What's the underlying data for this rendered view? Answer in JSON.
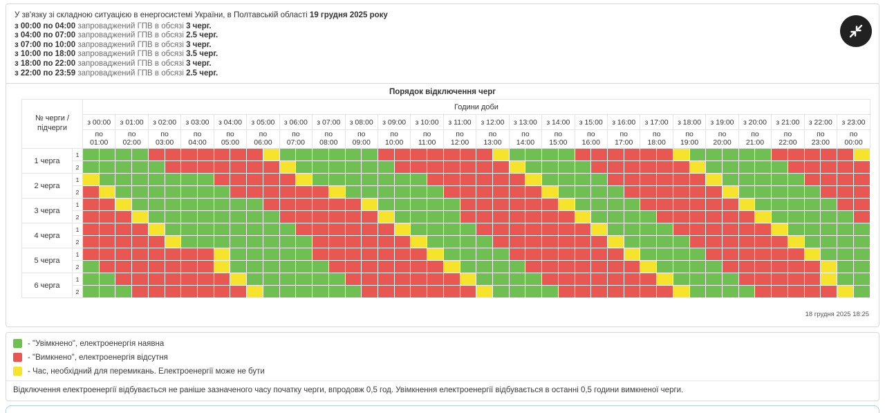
{
  "colors": {
    "on": "#6fbf52",
    "off": "#e95752",
    "switching": "#f6e32b"
  },
  "header": {
    "intro": {
      "text": "У зв'язку зі складною ситуацією в енергосистемі України, в Полтавській області",
      "bold": "19 грудня 2025 року"
    },
    "lines": [
      {
        "range": "з 00:00 по 04:00",
        "mid": "запроваджений ГПВ в обсязі",
        "amount": "3 черг."
      },
      {
        "range": "з 04:00 по 07:00",
        "mid": "запроваджений ГПВ в обсязі",
        "amount": "2.5 черг."
      },
      {
        "range": "з 07:00 по 10:00",
        "mid": "запроваджений ГПВ в обсязі",
        "amount": "3 черг."
      },
      {
        "range": "з 10:00 по 18:00",
        "mid": "запроваджений ГПВ в обсязі",
        "amount": "3.5 черг."
      },
      {
        "range": "з 18:00 по 22:00",
        "mid": "запроваджений ГПВ в обсязі",
        "amount": "3 черг."
      },
      {
        "range": "з 22:00 по 23:59",
        "mid": "запроваджений ГПВ в обсязі",
        "amount": "2.5 черг."
      }
    ]
  },
  "schedule": {
    "title": "Порядок відключення черг",
    "corner_label": "№ черги / підчерги",
    "hours_label": "Години доби",
    "timestamp": "18 грудня 2025 18:25",
    "columns": [
      {
        "from": "з 00:00",
        "po": "по",
        "to": "01:00"
      },
      {
        "from": "з 01:00",
        "po": "по",
        "to": "02:00"
      },
      {
        "from": "з 02:00",
        "po": "по",
        "to": "03:00"
      },
      {
        "from": "з 03:00",
        "po": "по",
        "to": "04:00"
      },
      {
        "from": "з 04:00",
        "po": "по",
        "to": "05:00"
      },
      {
        "from": "з 05:00",
        "po": "по",
        "to": "06:00"
      },
      {
        "from": "з 06:00",
        "po": "по",
        "to": "07:00"
      },
      {
        "from": "з 07:00",
        "po": "по",
        "to": "08:00"
      },
      {
        "from": "з 08:00",
        "po": "по",
        "to": "09:00"
      },
      {
        "from": "з 09:00",
        "po": "по",
        "to": "10:00"
      },
      {
        "from": "з 10:00",
        "po": "по",
        "to": "11:00"
      },
      {
        "from": "з 11:00",
        "po": "по",
        "to": "12:00"
      },
      {
        "from": "з 12:00",
        "po": "по",
        "to": "13:00"
      },
      {
        "from": "з 13:00",
        "po": "по",
        "to": "14:00"
      },
      {
        "from": "з 14:00",
        "po": "по",
        "to": "15:00"
      },
      {
        "from": "з 15:00",
        "po": "по",
        "to": "16:00"
      },
      {
        "from": "з 16:00",
        "po": "по",
        "to": "17:00"
      },
      {
        "from": "з 17:00",
        "po": "по",
        "to": "18:00"
      },
      {
        "from": "з 18:00",
        "po": "по",
        "to": "19:00"
      },
      {
        "from": "з 19:00",
        "po": "по",
        "to": "20:00"
      },
      {
        "from": "з 20:00",
        "po": "по",
        "to": "21:00"
      },
      {
        "from": "з 21:00",
        "po": "по",
        "to": "22:00"
      },
      {
        "from": "з 22:00",
        "po": "по",
        "to": "23:00"
      },
      {
        "from": "з 23:00",
        "po": "по",
        "to": "00:00"
      }
    ],
    "cell_legend": "48 half-hour cells per row: G=on, R=off, Y=switching",
    "queues": [
      {
        "label": "1 черга",
        "subrows": [
          {
            "num": "1",
            "cells": "GGGGRRRRRRRYGGGGGGRRRRRRRYGGGGRRRRRRYGGGGGRRRRRY"
          },
          {
            "num": "2",
            "cells": "GGGGGRRRRRRRYGGGGGGRRRRRRRYGGGGRRRRRRYGGGGGRRRRR"
          }
        ]
      },
      {
        "label": "2 черга",
        "subrows": [
          {
            "num": "1",
            "cells": "YGGGGGGGRRRRRYGGGGGGGRRRRRRYGGGGRRRRRRYGGGGGRRRR"
          },
          {
            "num": "2",
            "cells": "RYGGGGGGGRRRRRRYGGGGGGRRRRRRYGGGGRRRRRRYGGGGGRRR"
          }
        ]
      },
      {
        "label": "3 черга",
        "subrows": [
          {
            "num": "1",
            "cells": "RRYGGGGGGGGRRRRRRYGGGGGRRRRRRYGGGGRRRRRRYGGGGGRR"
          },
          {
            "num": "2",
            "cells": "RRRYGGGGGGGGRRRRRRYGGGGRRRRRRRYGGGGRRRRRRYGGGGGR"
          }
        ]
      },
      {
        "label": "4 черга",
        "subrows": [
          {
            "num": "1",
            "cells": "RRRRYGGGGGGGGRRRRRRYGGGGRRRRRRRYGGGGRRRRRRYGGGGG"
          },
          {
            "num": "2",
            "cells": "RRRRRYGGGGGGGGRRRRRRYGGGGRRRRRRRYGGGGRRRRRRYGGGG"
          }
        ]
      },
      {
        "label": "5 черга",
        "subrows": [
          {
            "num": "1",
            "cells": "RRRRRRRRYGGGGGRRRRRRRYGGGGRRRRRRRYGGGGRRRRRRYGGG"
          },
          {
            "num": "2",
            "cells": "GRRRRRRRYGGGGGGRRRRRRRYGGGGRRRRRRRYGGGGRRRRRRYGG"
          }
        ]
      },
      {
        "label": "6 черга",
        "subrows": [
          {
            "num": "1",
            "cells": "GGRRRRRRRYGGGGGGRRRRRRRYGGGGRRRRRRRYGGGGRRRRRYGG"
          },
          {
            "num": "2",
            "cells": "GGGRRRRRRRYGGGGGGRRRRRRRYGGGGRRRRRRRYGGGGRRRRRYG"
          }
        ]
      }
    ]
  },
  "legend": {
    "items": [
      {
        "key": "on",
        "label": "- \"Увімкнено\", електроенергія наявна"
      },
      {
        "key": "off",
        "label": "- \"Вимкнено\", електроенергія відсутня"
      },
      {
        "key": "switching",
        "label": "- Час, необхідний для перемикань. Електроенергії може не бути"
      }
    ]
  },
  "footnote": "Відключення електроенергії відбувається не раніше зазначеного часу початку черги, впродовж 0,5 год. Увімкнення електроенергії відбувається в останні 0,5 години вимкненої черги."
}
